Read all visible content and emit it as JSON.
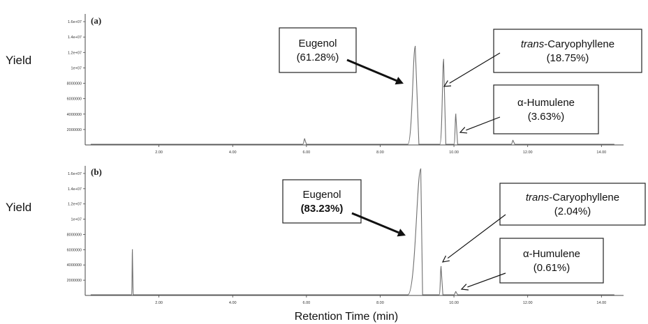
{
  "chart_data": {
    "type": "line",
    "xlabel": "Retention Time (min)",
    "xlim": [
      0,
      14.6
    ],
    "x_ticks": [
      {
        "value": 2,
        "label": "2.00"
      },
      {
        "value": 4,
        "label": "4.00"
      },
      {
        "value": 6,
        "label": "6.00"
      },
      {
        "value": 8,
        "label": "8.00"
      },
      {
        "value": 10,
        "label": "10.00"
      },
      {
        "value": 12,
        "label": "12.00"
      },
      {
        "value": 14,
        "label": "14.00"
      }
    ],
    "panels": [
      {
        "id": "a",
        "tag": "(a)",
        "ylabel": "Yield",
        "ylim": [
          0,
          17000000
        ],
        "y_ticks": [
          {
            "value": 2000000,
            "label": "2000000"
          },
          {
            "value": 4000000,
            "label": "4000000"
          },
          {
            "value": 6000000,
            "label": "6000000"
          },
          {
            "value": 8000000,
            "label": "8000000"
          },
          {
            "value": 10000000,
            "label": "1e+07"
          },
          {
            "value": 12000000,
            "label": "1.2e+07"
          },
          {
            "value": 14000000,
            "label": "1.4e+07"
          },
          {
            "value": 16000000,
            "label": "1.6e+07"
          }
        ],
        "peaks": [
          {
            "x": 5.95,
            "height": 800000,
            "start": 5.9,
            "end": 6.0
          },
          {
            "x": 8.95,
            "height": 12800000,
            "start": 8.75,
            "end": 9.05
          },
          {
            "x": 9.72,
            "height": 11100000,
            "start": 9.62,
            "end": 9.78
          },
          {
            "x": 10.05,
            "height": 4000000,
            "start": 10.0,
            "end": 10.1
          },
          {
            "x": 11.6,
            "height": 600000,
            "start": 11.55,
            "end": 11.65
          }
        ],
        "annotations": [
          {
            "name": "eugenol",
            "lines": [
              {
                "parts": [
                  {
                    "text": "Eugenol",
                    "style": ""
                  }
                ]
              },
              {
                "parts": [
                  {
                    "text": "(61.28%)",
                    "style": ""
                  }
                ]
              }
            ],
            "bold_arrow": true,
            "peak_x": 8.8,
            "peak_y": 7500000
          },
          {
            "name": "trans-caryophyllene",
            "lines": [
              {
                "parts": [
                  {
                    "text": "trans",
                    "style": "italic"
                  },
                  {
                    "text": "-Caryophyllene",
                    "style": ""
                  }
                ]
              },
              {
                "parts": [
                  {
                    "text": "(18.75%)",
                    "style": ""
                  }
                ]
              }
            ],
            "bold_arrow": false,
            "peak_x": 9.72,
            "peak_y": 7000000
          },
          {
            "name": "alpha-humulene",
            "lines": [
              {
                "parts": [
                  {
                    "text": "α-Humulene",
                    "style": ""
                  }
                ]
              },
              {
                "parts": [
                  {
                    "text": "(3.63%)",
                    "style": ""
                  }
                ]
              }
            ],
            "bold_arrow": false,
            "peak_x": 10.1,
            "peak_y": 1200000
          }
        ]
      },
      {
        "id": "b",
        "tag": "(b)",
        "ylabel": "Yield",
        "ylim": [
          0,
          17000000
        ],
        "y_ticks": [
          {
            "value": 2000000,
            "label": "2000000"
          },
          {
            "value": 4000000,
            "label": "4000000"
          },
          {
            "value": 6000000,
            "label": "6000000"
          },
          {
            "value": 8000000,
            "label": "8000000"
          },
          {
            "value": 10000000,
            "label": "1e+07"
          },
          {
            "value": 12000000,
            "label": "1.2e+07"
          },
          {
            "value": 14000000,
            "label": "1.4e+07"
          },
          {
            "value": 16000000,
            "label": "1.6e+07"
          }
        ],
        "peaks": [
          {
            "x": 1.28,
            "height": 6000000,
            "start": 1.26,
            "end": 1.3
          },
          {
            "x": 9.1,
            "height": 16600000,
            "start": 8.75,
            "end": 9.15
          },
          {
            "x": 9.65,
            "height": 3800000,
            "start": 9.6,
            "end": 9.7
          },
          {
            "x": 10.05,
            "height": 500000,
            "start": 10.0,
            "end": 10.1
          }
        ],
        "annotations": [
          {
            "name": "eugenol",
            "lines": [
              {
                "parts": [
                  {
                    "text": "Eugenol",
                    "style": ""
                  }
                ]
              },
              {
                "parts": [
                  {
                    "text": "(83.23%)",
                    "style": "bold"
                  }
                ]
              }
            ],
            "bold_arrow": true,
            "peak_x": 8.85,
            "peak_y": 7500000
          },
          {
            "name": "trans-caryophyllene",
            "lines": [
              {
                "parts": [
                  {
                    "text": "trans",
                    "style": "italic"
                  },
                  {
                    "text": "-Caryophyllene",
                    "style": ""
                  }
                ]
              },
              {
                "parts": [
                  {
                    "text": "(2.04%)",
                    "style": ""
                  }
                ]
              }
            ],
            "bold_arrow": false,
            "peak_x": 9.65,
            "peak_y": 3800000
          },
          {
            "name": "alpha-humulene",
            "lines": [
              {
                "parts": [
                  {
                    "text": "α-Humulene",
                    "style": ""
                  }
                ]
              },
              {
                "parts": [
                  {
                    "text": "(0.61%)",
                    "style": ""
                  }
                ]
              }
            ],
            "bold_arrow": false,
            "peak_x": 10.1,
            "peak_y": 500000
          }
        ]
      }
    ]
  }
}
